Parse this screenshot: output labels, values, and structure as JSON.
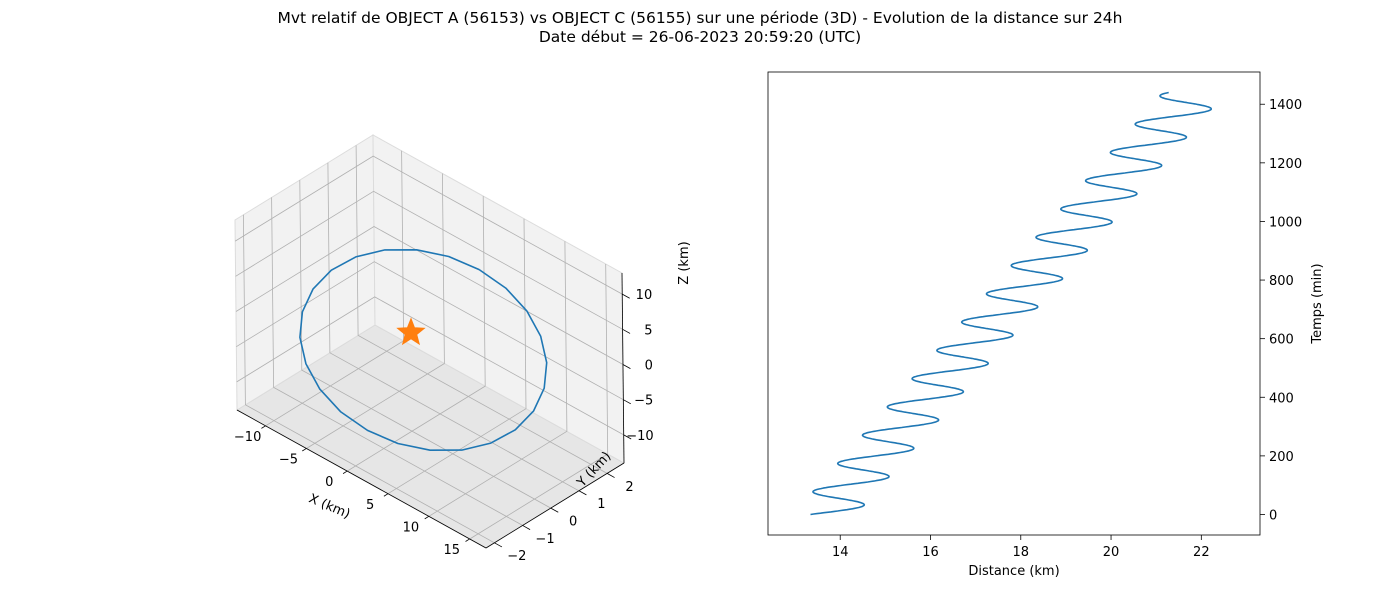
{
  "figure": {
    "title_line1": "Mvt relatif de OBJECT A (56153) vs OBJECT C (56155) sur une période (3D) - Evolution de la distance sur 24h",
    "title_line2": "Date début = 26-06-2023 20:59:20 (UTC)"
  },
  "colors": {
    "line": "#1f77b4",
    "marker": "#ff7f0e",
    "pane_floor": "#e6e6e6",
    "pane_wall": "#f2f2f2",
    "grid": "#b0b0b0"
  },
  "chart_data": [
    {
      "type": "line",
      "projection": "3d",
      "xlabel": "X (km)",
      "ylabel": "Y (km)",
      "zlabel": "Z (km)",
      "xlim": [
        -13.5,
        17
      ],
      "ylim": [
        -2.3,
        2.6
      ],
      "zlim": [
        -14,
        13
      ],
      "x_ticks": [
        -10,
        -5,
        0,
        5,
        10,
        15
      ],
      "y_ticks": [
        -2,
        -1,
        0,
        1,
        2
      ],
      "z_ticks": [
        -10,
        -5,
        0,
        5,
        10
      ],
      "x_tick_labels": [
        "−10",
        "−5",
        "0",
        "5",
        "10",
        "15"
      ],
      "y_tick_labels": [
        "−2",
        "−1",
        "0",
        "1",
        "2"
      ],
      "z_tick_labels": [
        "−10",
        "−5",
        "0",
        "5",
        "10"
      ],
      "grid": true,
      "series": [
        {
          "marker": "line",
          "ellipse": {
            "center_x": 1.5,
            "semi_axis_x": 13.5,
            "semi_axis_y": 2.0,
            "semi_axis_z": 6.5,
            "z_center": -1.5,
            "points": 24
          }
        },
        {
          "marker": "star",
          "x": [
            0
          ],
          "y": [
            0
          ],
          "z": [
            0
          ]
        }
      ]
    },
    {
      "type": "line",
      "xlabel": "Distance (km)",
      "ylabel": "Temps (min)",
      "xlim": [
        12.4,
        23.3
      ],
      "ylim": [
        -70,
        1510
      ],
      "x_ticks": [
        14,
        16,
        18,
        20,
        22
      ],
      "y_ticks": [
        0,
        200,
        400,
        600,
        800,
        1000,
        1200,
        1400
      ],
      "y_axis_side": "right",
      "grid": false,
      "series": [
        {
          "model": "distance = 13.65 + t*0.00569 + 0.7*sin(2*pi*(t - 7)/96.5)",
          "t": [
            0,
            8,
            16,
            24,
            32,
            40,
            48,
            56,
            64,
            72,
            80,
            88,
            96,
            104,
            112,
            120,
            128,
            136,
            144,
            152,
            160,
            168,
            176,
            184,
            192,
            200,
            208,
            216,
            224,
            232,
            240,
            248,
            256,
            264,
            272,
            280,
            288,
            296,
            304,
            312,
            320,
            328,
            336,
            344,
            352,
            360,
            368,
            376,
            384,
            392,
            400,
            408,
            416,
            424,
            432,
            440,
            448,
            456,
            464,
            472,
            480,
            488,
            496,
            504,
            512,
            520,
            528,
            536,
            544,
            552,
            560,
            568,
            576,
            584,
            592,
            600,
            608,
            616,
            624,
            632,
            640,
            648,
            656,
            664,
            672,
            680,
            688,
            696,
            704,
            712,
            720,
            728,
            736,
            744,
            752,
            760,
            768,
            776,
            784,
            792,
            800,
            808,
            816,
            824,
            832,
            840,
            848,
            856,
            864,
            872,
            880,
            888,
            896,
            904,
            912,
            920,
            928,
            936,
            944,
            952,
            960,
            968,
            976,
            984,
            992,
            1000,
            1008,
            1016,
            1024,
            1032,
            1040,
            1048,
            1056,
            1064,
            1072,
            1080,
            1088,
            1096,
            1104,
            1112,
            1120,
            1128,
            1136,
            1144,
            1152,
            1160,
            1168,
            1176,
            1184,
            1192,
            1200,
            1208,
            1216,
            1224,
            1232,
            1240,
            1248,
            1256,
            1264,
            1272,
            1280,
            1288,
            1296,
            1304,
            1312,
            1320,
            1328,
            1336,
            1344,
            1352,
            1360,
            1368,
            1376,
            1384,
            1392,
            1400,
            1408,
            1416,
            1424,
            1432,
            1440
          ]
        }
      ]
    }
  ]
}
